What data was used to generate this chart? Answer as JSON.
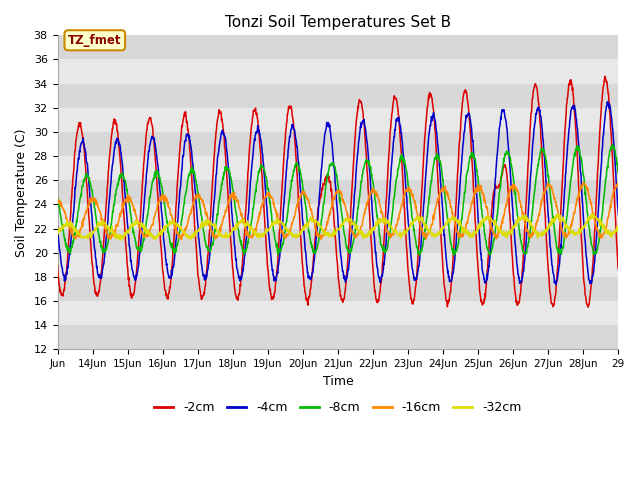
{
  "title": "Tonzi Soil Temperatures Set B",
  "xlabel": "Time",
  "ylabel": "Soil Temperature (C)",
  "annotation": "TZ_fmet",
  "ylim": [
    12,
    38
  ],
  "yticks": [
    12,
    14,
    16,
    18,
    20,
    22,
    24,
    26,
    28,
    30,
    32,
    34,
    36,
    38
  ],
  "series_colors": [
    "#dd0000",
    "#0000cc",
    "#00bb00",
    "#ff8800",
    "#dddd00"
  ],
  "series_labels": [
    "-2cm",
    "-4cm",
    "-8cm",
    "-16cm",
    "-32cm"
  ],
  "plot_bg_color": "#e8e8e8",
  "tick_labels": [
    "Jun",
    "14Jun",
    "15Jun",
    "16Jun",
    "17Jun",
    "18Jun",
    "19Jun",
    "20Jun",
    "21Jun",
    "22Jun",
    "23Jun",
    "24Jun",
    "25Jun",
    "26Jun",
    "27Jun",
    "28Jun",
    "29"
  ]
}
